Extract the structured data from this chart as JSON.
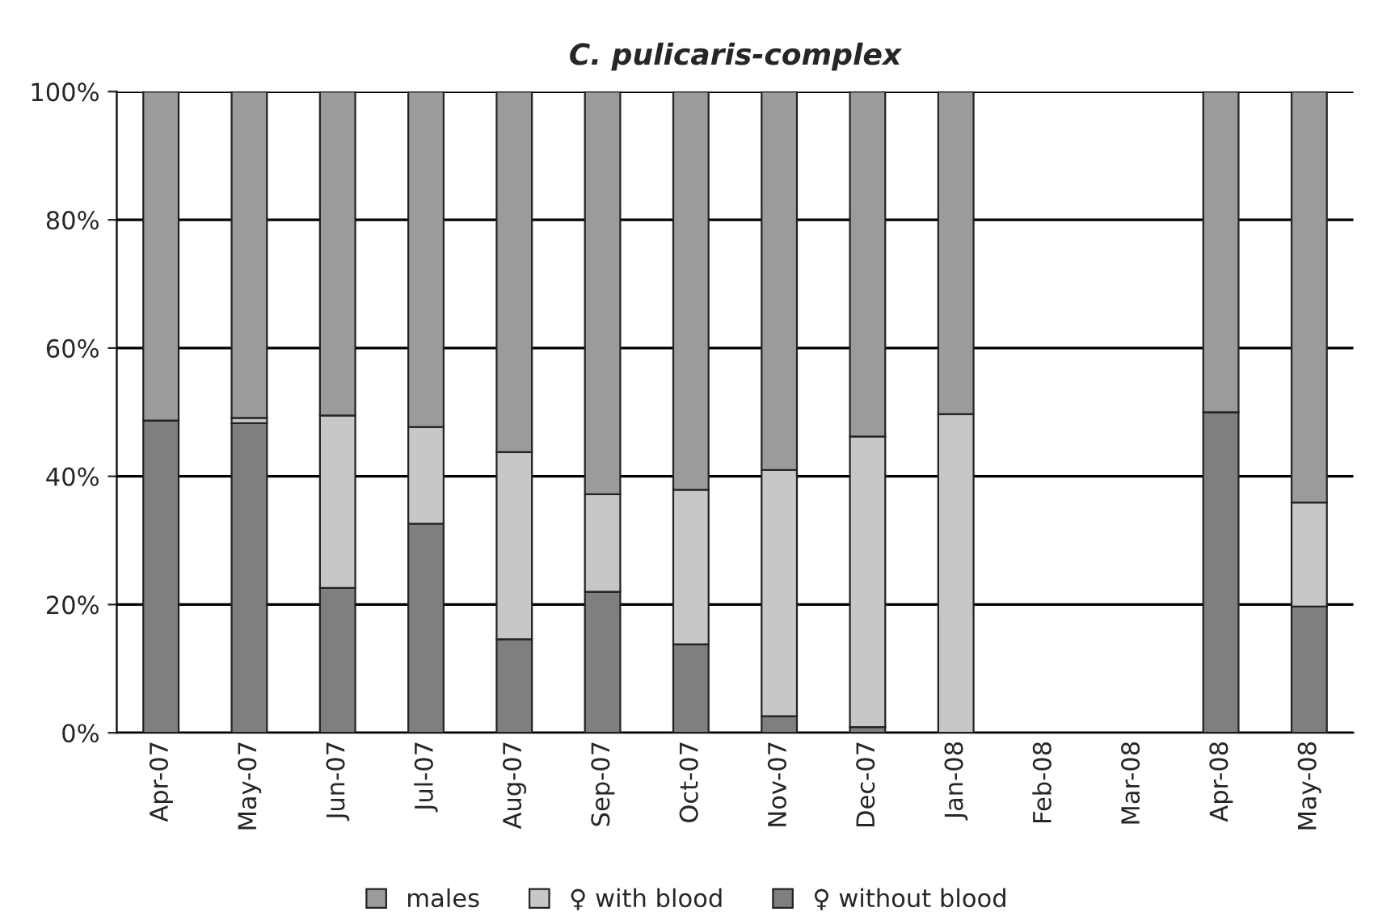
{
  "chart_data": {
    "type": "bar",
    "title": "C. pulicaris-complex",
    "stacked": true,
    "categories": [
      "Apr-07",
      "May-07",
      "Jun-07",
      "Jul-07",
      "Aug-07",
      "Sep-07",
      "Oct-07",
      "Nov-07",
      "Dec-07",
      "Jan-08",
      "Feb-08",
      "Mar-08",
      "Apr-08",
      "May-08"
    ],
    "series": [
      {
        "name": "♀ without blood",
        "color": "#7f7f7f",
        "values": [
          48.7,
          48.3,
          22.6,
          32.6,
          14.6,
          22,
          13.8,
          2.6,
          0.9,
          null,
          null,
          null,
          50,
          19.7
        ]
      },
      {
        "name": "♀ with blood",
        "color": "#c6c7c6",
        "values": [
          null,
          0.8,
          26.9,
          15.1,
          29.2,
          15.2,
          24.1,
          38.4,
          45.3,
          49.7,
          null,
          null,
          null,
          16.2
        ]
      },
      {
        "name": "males",
        "color": "#9a9b9a",
        "values": [
          51.3,
          50.9,
          50.5,
          52.3,
          56.2,
          62.8,
          62.1,
          59,
          53.8,
          50.3,
          null,
          null,
          50,
          64.1
        ]
      }
    ],
    "ylim": [
      0,
      100
    ],
    "yticks": [
      {
        "value": 0,
        "label": "0%"
      },
      {
        "value": 20,
        "label": "20%"
      },
      {
        "value": 40,
        "label": "40%"
      },
      {
        "value": 60,
        "label": "60%"
      },
      {
        "value": 80,
        "label": "80%"
      },
      {
        "value": 100,
        "label": "100%"
      }
    ],
    "grid": "y",
    "legend": "bottom"
  }
}
